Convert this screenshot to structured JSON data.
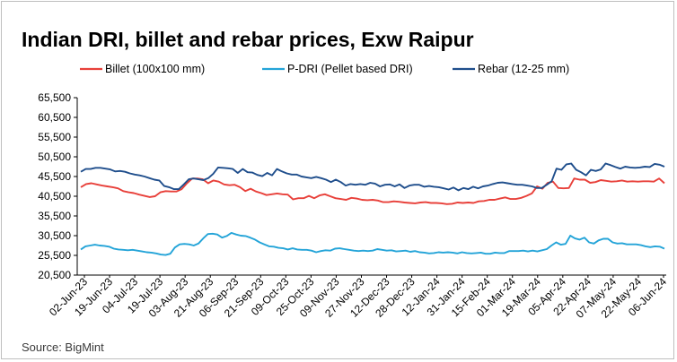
{
  "chart_data": {
    "type": "line",
    "title": "Indian DRI, billet and rebar prices, Exw Raipur",
    "source": "Source: BigMint",
    "xlabel": "",
    "ylabel": "",
    "ylim": [
      20500,
      65500
    ],
    "ytick_values": [
      20500,
      25500,
      30500,
      35500,
      40500,
      45500,
      50500,
      55500,
      60500,
      65500
    ],
    "ytick_labels": [
      "20,500",
      "25,500",
      "30,500",
      "35,500",
      "40,500",
      "45,500",
      "50,500",
      "55,500",
      "60,500",
      "65,500"
    ],
    "x_labels": [
      "02-Jun-23",
      "19-Jun-23",
      "04-Jul-23",
      "19-Jul-23",
      "03-Aug-23",
      "21-Aug-23",
      "06-Sep-23",
      "21-Sep-23",
      "09-Oct-23",
      "25-Oct-23",
      "09-Nov-23",
      "27-Nov-23",
      "12-Dec-23",
      "28-Dec-23",
      "12-Jan-24",
      "31-Jan-24",
      "15-Feb-24",
      "01-Mar-24",
      "19-Mar-24",
      "05-Apr-24",
      "22-Apr-24",
      "07-May-24",
      "22-May-24",
      "06-Jun-24"
    ],
    "grid": false,
    "legend_position": "top",
    "series": [
      {
        "name": "Billet (100x100 mm)",
        "color": "#e8403a",
        "values": [
          42800,
          43600,
          43800,
          43500,
          43200,
          43000,
          42800,
          42500,
          41800,
          41500,
          41300,
          40900,
          40600,
          40300,
          40500,
          41500,
          41800,
          41700,
          41700,
          42300,
          43800,
          45000,
          45000,
          44800,
          43800,
          44500,
          44200,
          43500,
          43300,
          43400,
          42800,
          41800,
          42400,
          41700,
          41300,
          40800,
          41000,
          41200,
          41000,
          40900,
          39700,
          40000,
          40000,
          40600,
          40000,
          40700,
          41000,
          40500,
          40000,
          39800,
          39600,
          40100,
          39900,
          39600,
          39500,
          39600,
          39400,
          39000,
          39000,
          39200,
          39100,
          38900,
          38800,
          38700,
          38900,
          39000,
          38800,
          38800,
          38700,
          38500,
          38600,
          38900,
          38800,
          38900,
          38800,
          39200,
          39300,
          39600,
          39600,
          39900,
          40200,
          39800,
          39800,
          40100,
          40600,
          41200,
          43000,
          42400,
          43900,
          44200,
          42600,
          42500,
          42600,
          45000,
          44700,
          44700,
          43900,
          44100,
          44600,
          44400,
          44200,
          44300,
          44500,
          44200,
          44300,
          44200,
          44300,
          44300,
          44200,
          45000,
          43800
        ]
      },
      {
        "name": "P-DRI (Pellet based DRI)",
        "color": "#24a4d8",
        "values": [
          27000,
          27800,
          28000,
          28200,
          28000,
          27900,
          27700,
          27200,
          27000,
          26900,
          26800,
          26900,
          26700,
          26500,
          26300,
          26200,
          26000,
          25700,
          25600,
          25900,
          27500,
          28300,
          28400,
          28300,
          28000,
          28500,
          29800,
          30900,
          31000,
          30800,
          30000,
          30400,
          31200,
          30800,
          30500,
          30400,
          30000,
          29500,
          28800,
          28300,
          27800,
          27700,
          27400,
          27300,
          27000,
          27300,
          27000,
          26900,
          26900,
          26700,
          26300,
          26600,
          26800,
          26700,
          27200,
          27300,
          27100,
          26900,
          26700,
          26600,
          26700,
          26600,
          26700,
          27100,
          26900,
          26700,
          26800,
          26500,
          26600,
          26700,
          26400,
          26600,
          26300,
          26200,
          26000,
          26100,
          26300,
          26200,
          26300,
          26200,
          26000,
          26300,
          26100,
          26000,
          26100,
          26200,
          25900,
          25900,
          26200,
          26100,
          26100,
          26600,
          26600,
          26600,
          26700,
          26500,
          26700,
          26500,
          26800,
          27100,
          28000,
          28800,
          28200,
          28400,
          30500,
          29800,
          29500,
          30000,
          28800,
          28500,
          29300,
          29700,
          29700,
          28800,
          28500,
          28600,
          28300,
          28300,
          28300,
          28100,
          27800,
          27600,
          27800,
          27700,
          27200
        ]
      },
      {
        "name": "Rebar (12-25 mm)",
        "color": "#1f4e8c",
        "values": [
          46700,
          47400,
          47400,
          47700,
          47700,
          47500,
          47300,
          46800,
          46900,
          46700,
          46300,
          46000,
          45800,
          45500,
          45100,
          44700,
          44500,
          43100,
          42800,
          42300,
          42300,
          43500,
          44800,
          45000,
          44800,
          44600,
          45100,
          46200,
          47800,
          47700,
          47600,
          47400,
          46400,
          47400,
          46600,
          46500,
          45900,
          45600,
          46400,
          45800,
          47400,
          46800,
          46300,
          46000,
          46000,
          45500,
          45300,
          45100,
          45400,
          45100,
          44700,
          44100,
          44700,
          44100,
          43200,
          43600,
          43400,
          43600,
          43400,
          43900,
          43700,
          43000,
          43400,
          43500,
          43000,
          43500,
          42600,
          43200,
          43400,
          43400,
          42900,
          43100,
          42900,
          42800,
          42500,
          42200,
          42700,
          42000,
          42600,
          42300,
          42900,
          42500,
          43000,
          43200,
          43600,
          43900,
          44000,
          43800,
          43600,
          43400,
          43400,
          43200,
          43000,
          42600,
          42600,
          43400,
          44300,
          47500,
          47200,
          48600,
          48800,
          47200,
          46600,
          45800,
          47200,
          46900,
          47300,
          48800,
          48400,
          47900,
          47500,
          48000,
          47800,
          47700,
          47800,
          48000,
          47900,
          48700,
          48500,
          48000
        ]
      }
    ]
  }
}
